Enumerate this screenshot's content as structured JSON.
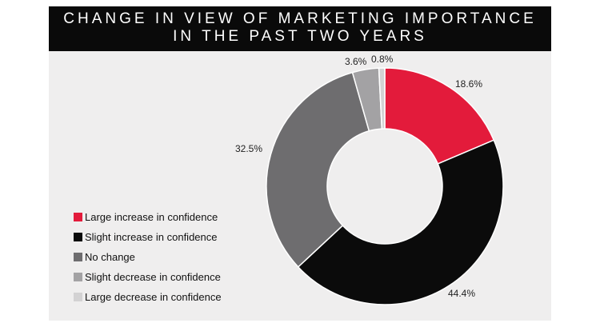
{
  "chart_data": {
    "type": "pie",
    "title_lines": [
      "CHANGE IN VIEW OF MARKETING IMPORTANCE",
      "IN THE PAST TWO YEARS"
    ],
    "categories": [
      "Large increase in confidence",
      "Slight increase in confidence",
      "No change",
      "Slight decrease in confidence",
      "Large decrease in confidence"
    ],
    "values": [
      18.6,
      44.4,
      32.5,
      3.6,
      0.8
    ],
    "value_labels": [
      "18.6%",
      "44.4%",
      "32.5%",
      "3.6%",
      "0.8%"
    ],
    "colors": [
      "#e31b3b",
      "#0b0b0b",
      "#6e6d6f",
      "#a3a2a4",
      "#d3d2d3"
    ],
    "donut": true,
    "legend_position": "left"
  }
}
